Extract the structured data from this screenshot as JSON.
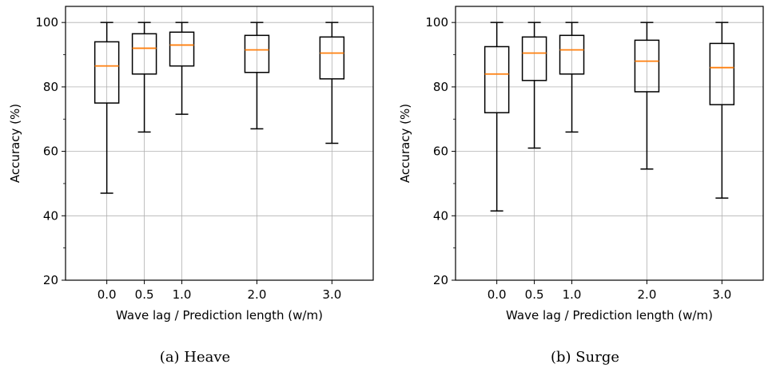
{
  "chart_data": [
    {
      "type": "box",
      "caption": "(a) Heave",
      "xlabel": "Wave lag / Prediction length (w/m)",
      "ylabel": "Accuracy (%)",
      "ylim": [
        20,
        105
      ],
      "yticks": [
        20,
        40,
        60,
        80,
        100
      ],
      "xlim": [
        -0.55,
        3.55
      ],
      "grid": true,
      "median_color": "#ff7f0e",
      "boxes": [
        {
          "label": "0.0",
          "x": 0.0,
          "whisker_low": 47.0,
          "q1": 75.0,
          "median": 86.5,
          "q3": 94.0,
          "whisker_high": 100
        },
        {
          "label": "0.5",
          "x": 0.5,
          "whisker_low": 66.0,
          "q1": 84.0,
          "median": 92.0,
          "q3": 96.5,
          "whisker_high": 100
        },
        {
          "label": "1.0",
          "x": 1.0,
          "whisker_low": 71.5,
          "q1": 86.5,
          "median": 93.0,
          "q3": 97.0,
          "whisker_high": 100
        },
        {
          "label": "2.0",
          "x": 2.0,
          "whisker_low": 67.0,
          "q1": 84.5,
          "median": 91.5,
          "q3": 96.0,
          "whisker_high": 100
        },
        {
          "label": "3.0",
          "x": 3.0,
          "whisker_low": 62.5,
          "q1": 82.5,
          "median": 90.5,
          "q3": 95.5,
          "whisker_high": 100
        }
      ]
    },
    {
      "type": "box",
      "caption": "(b) Surge",
      "xlabel": "Wave lag / Prediction length (w/m)",
      "ylabel": "Accuracy (%)",
      "ylim": [
        20,
        105
      ],
      "yticks": [
        20,
        40,
        60,
        80,
        100
      ],
      "xlim": [
        -0.55,
        3.55
      ],
      "grid": true,
      "median_color": "#ff7f0e",
      "boxes": [
        {
          "label": "0.0",
          "x": 0.0,
          "whisker_low": 41.5,
          "q1": 72.0,
          "median": 84.0,
          "q3": 92.5,
          "whisker_high": 100
        },
        {
          "label": "0.5",
          "x": 0.5,
          "whisker_low": 61.0,
          "q1": 82.0,
          "median": 90.5,
          "q3": 95.5,
          "whisker_high": 100
        },
        {
          "label": "1.0",
          "x": 1.0,
          "whisker_low": 66.0,
          "q1": 84.0,
          "median": 91.5,
          "q3": 96.0,
          "whisker_high": 100
        },
        {
          "label": "2.0",
          "x": 2.0,
          "whisker_low": 54.5,
          "q1": 78.5,
          "median": 88.0,
          "q3": 94.5,
          "whisker_high": 100
        },
        {
          "label": "3.0",
          "x": 3.0,
          "whisker_low": 45.5,
          "q1": 74.5,
          "median": 86.0,
          "q3": 93.5,
          "whisker_high": 100
        }
      ]
    }
  ]
}
